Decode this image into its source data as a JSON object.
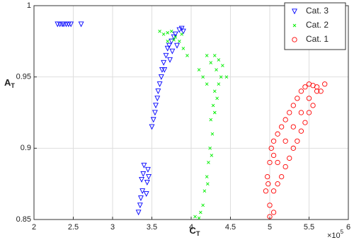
{
  "chart_data": {
    "type": "scatter",
    "xlabel": {
      "main": "C",
      "sub": "T"
    },
    "ylabel": {
      "main": "A",
      "sub": "T"
    },
    "x_offset": {
      "base": "×10",
      "power": "5"
    },
    "xlim": [
      2,
      6
    ],
    "xticks": [
      2,
      2.5,
      3,
      3.5,
      4,
      4.5,
      5,
      5.5,
      6
    ],
    "ylim": [
      0.85,
      1
    ],
    "yticks": [
      0.85,
      0.9,
      0.95,
      1
    ],
    "grid": true,
    "legend": "upper right",
    "series": [
      {
        "name": "Cat. 3",
        "color": "#0000ff",
        "marker": "triangle-down",
        "x": [
          2.3,
          2.33,
          2.36,
          2.38,
          2.41,
          2.44,
          2.47,
          2.6,
          3.33,
          3.35,
          3.36,
          3.38,
          3.37,
          3.39,
          3.4,
          3.45,
          3.44,
          3.43,
          3.46,
          3.5,
          3.52,
          3.54,
          3.55,
          3.57,
          3.58,
          3.6,
          3.62,
          3.63,
          3.65,
          3.68,
          3.7,
          3.72,
          3.75,
          3.78,
          3.8,
          3.85,
          3.88,
          3.9,
          3.82,
          3.76,
          3.73,
          3.66
        ],
        "values": [
          0.987,
          0.987,
          0.987,
          0.987,
          0.987,
          0.987,
          0.987,
          0.987,
          0.855,
          0.86,
          0.865,
          0.87,
          0.878,
          0.882,
          0.888,
          0.885,
          0.876,
          0.868,
          0.88,
          0.915,
          0.92,
          0.925,
          0.93,
          0.935,
          0.94,
          0.945,
          0.95,
          0.955,
          0.96,
          0.965,
          0.97,
          0.972,
          0.975,
          0.978,
          0.98,
          0.983,
          0.984,
          0.982,
          0.972,
          0.968,
          0.962,
          0.955
        ]
      },
      {
        "name": "Cat. 2",
        "color": "#00ee00",
        "marker": "x",
        "x": [
          3.6,
          3.65,
          3.7,
          3.75,
          3.8,
          3.85,
          3.9,
          3.95,
          3.7,
          3.78,
          3.88,
          4.2,
          4.25,
          4.3,
          4.35,
          4.4,
          4.45,
          4.1,
          4.15,
          4.2,
          4.3,
          4.28,
          4.25,
          4.27,
          4.24,
          4.22,
          4.2,
          4.17,
          4.15,
          4.12,
          4.1,
          4.05,
          4.3,
          4.26,
          4.21,
          4.33,
          4.35,
          4.38,
          4.32
        ],
        "values": [
          0.982,
          0.98,
          0.981,
          0.982,
          0.978,
          0.975,
          0.97,
          0.965,
          0.975,
          0.976,
          0.98,
          0.965,
          0.96,
          0.965,
          0.962,
          0.958,
          0.95,
          0.955,
          0.95,
          0.945,
          0.94,
          0.93,
          0.92,
          0.91,
          0.9,
          0.89,
          0.88,
          0.87,
          0.86,
          0.855,
          0.851,
          0.852,
          0.925,
          0.895,
          0.875,
          0.935,
          0.945,
          0.95,
          0.955
        ]
      },
      {
        "name": "Cat. 1",
        "color": "#ff0000",
        "marker": "circle",
        "x": [
          4.95,
          4.97,
          5.0,
          5.02,
          5.05,
          5.1,
          5.15,
          5.2,
          5.25,
          5.3,
          5.35,
          5.4,
          5.45,
          5.5,
          5.55,
          5.6,
          5.65,
          5.7,
          5.55,
          5.5,
          5.45,
          5.4,
          5.35,
          5.3,
          5.25,
          5.2,
          5.15,
          5.1,
          5.05,
          5.0,
          5.05,
          5.0,
          5.1,
          5.2,
          5.3,
          5.4,
          5.5,
          5.6,
          4.98,
          5.05
        ],
        "values": [
          0.87,
          0.88,
          0.89,
          0.9,
          0.905,
          0.91,
          0.915,
          0.92,
          0.925,
          0.93,
          0.935,
          0.94,
          0.943,
          0.945,
          0.944,
          0.943,
          0.94,
          0.945,
          0.93,
          0.925,
          0.918,
          0.912,
          0.905,
          0.9,
          0.893,
          0.887,
          0.88,
          0.875,
          0.87,
          0.86,
          0.855,
          0.852,
          0.89,
          0.905,
          0.915,
          0.925,
          0.935,
          0.94,
          0.875,
          0.895
        ]
      }
    ]
  }
}
